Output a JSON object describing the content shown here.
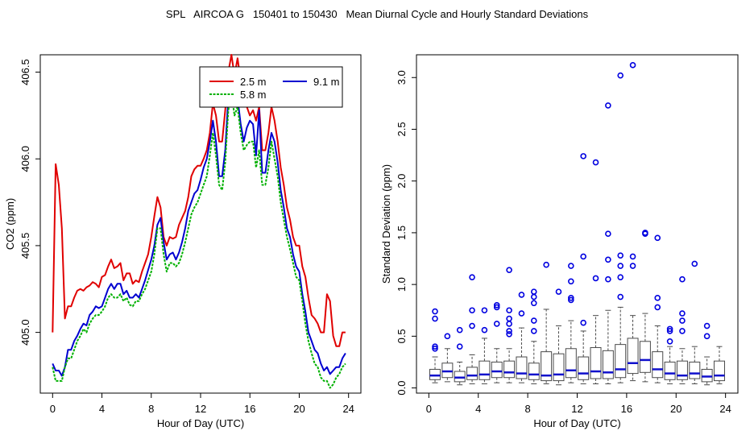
{
  "figure_title": "SPL   AIRCOA G   150401 to 150430   Mean Diurnal Cycle and Hourly Standard Deviations",
  "colors": {
    "red": "#e00000",
    "blue": "#0000d0",
    "green": "#00b000",
    "box": "#4a4a4a",
    "median": "#1010cc",
    "outlier": "#0000e0",
    "axis": "#000000"
  },
  "chart_data": [
    {
      "type": "line",
      "title": "",
      "xlabel": "Hour of Day (UTC)",
      "ylabel": "CO2 (ppm)",
      "xlim": [
        -1,
        25
      ],
      "ylim": [
        404.65,
        406.6
      ],
      "xticks": [
        0,
        4,
        8,
        12,
        16,
        20,
        24
      ],
      "xtick_labels": [
        "0",
        "4",
        "8",
        "12",
        "16",
        "20",
        "24"
      ],
      "yticks": [
        405.0,
        405.5,
        406.0,
        406.5
      ],
      "ytick_labels": [
        "405.0",
        "405.5",
        "406.0",
        "406.5"
      ],
      "x": [
        0,
        0.25,
        0.5,
        0.75,
        1,
        1.25,
        1.5,
        1.75,
        2,
        2.25,
        2.5,
        2.75,
        3,
        3.25,
        3.5,
        3.75,
        4,
        4.25,
        4.5,
        4.75,
        5,
        5.25,
        5.5,
        5.75,
        6,
        6.25,
        6.5,
        6.75,
        7,
        7.25,
        7.5,
        7.75,
        8,
        8.25,
        8.5,
        8.75,
        9,
        9.25,
        9.5,
        9.75,
        10,
        10.25,
        10.5,
        10.75,
        11,
        11.25,
        11.5,
        11.75,
        12,
        12.25,
        12.5,
        12.75,
        13,
        13.25,
        13.5,
        13.75,
        14,
        14.25,
        14.5,
        14.75,
        15,
        15.25,
        15.5,
        15.75,
        16,
        16.25,
        16.5,
        16.75,
        17,
        17.25,
        17.5,
        17.75,
        18,
        18.25,
        18.5,
        18.75,
        19,
        19.25,
        19.5,
        19.75,
        20,
        20.25,
        20.5,
        20.75,
        21,
        21.25,
        21.5,
        21.75,
        22,
        22.25,
        22.5,
        22.75,
        23,
        23.25,
        23.5,
        23.75
      ],
      "legend": {
        "position": "top-right",
        "entries": [
          "2.5 m",
          "9.1 m",
          "5.8 m"
        ]
      },
      "series": [
        {
          "name": "2.5 m",
          "color": "red",
          "values": [
            405.0,
            405.97,
            405.85,
            405.6,
            405.08,
            405.15,
            405.15,
            405.2,
            405.24,
            405.25,
            405.24,
            405.26,
            405.27,
            405.29,
            405.28,
            405.26,
            405.32,
            405.33,
            405.38,
            405.42,
            405.37,
            405.38,
            405.4,
            405.3,
            405.34,
            405.34,
            405.28,
            405.3,
            405.29,
            405.35,
            405.4,
            405.45,
            405.55,
            405.67,
            405.78,
            405.72,
            405.55,
            405.5,
            405.55,
            405.54,
            405.55,
            405.62,
            405.66,
            405.7,
            405.78,
            405.9,
            405.94,
            405.96,
            405.96,
            406.0,
            406.05,
            406.15,
            406.32,
            406.25,
            406.1,
            406.1,
            406.28,
            406.5,
            406.6,
            406.48,
            406.58,
            406.45,
            406.4,
            406.3,
            406.25,
            406.28,
            406.22,
            406.3,
            406.05,
            406.05,
            406.15,
            406.3,
            406.22,
            406.1,
            405.95,
            405.85,
            405.72,
            405.65,
            405.55,
            405.5,
            405.5,
            405.38,
            405.32,
            405.2,
            405.1,
            405.08,
            405.05,
            405.0,
            405.0,
            405.22,
            405.18,
            404.98,
            404.92,
            404.92,
            405.0,
            405.0
          ]
        },
        {
          "name": "9.1 m",
          "color": "blue",
          "values": [
            404.82,
            404.78,
            404.78,
            404.75,
            404.8,
            404.9,
            404.9,
            404.95,
            404.98,
            405.02,
            405.05,
            405.04,
            405.1,
            405.12,
            405.15,
            405.14,
            405.15,
            405.2,
            405.25,
            405.28,
            405.25,
            405.28,
            405.28,
            405.22,
            405.24,
            405.2,
            405.2,
            405.22,
            405.2,
            405.25,
            405.3,
            405.36,
            405.42,
            405.5,
            405.62,
            405.66,
            405.52,
            405.42,
            405.45,
            405.46,
            405.42,
            405.46,
            405.52,
            405.6,
            405.7,
            405.75,
            405.8,
            405.82,
            405.88,
            405.95,
            406.0,
            406.1,
            406.22,
            406.1,
            405.9,
            405.9,
            406.05,
            406.35,
            406.45,
            406.32,
            406.35,
            406.2,
            406.1,
            406.18,
            406.22,
            406.2,
            406.02,
            406.28,
            405.92,
            405.92,
            406.05,
            406.15,
            406.1,
            405.98,
            405.82,
            405.72,
            405.6,
            405.55,
            405.45,
            405.38,
            405.35,
            405.22,
            405.12,
            405.0,
            404.95,
            404.9,
            404.88,
            404.82,
            404.78,
            404.8,
            404.76,
            404.78,
            404.8,
            404.8,
            404.85,
            404.88
          ]
        },
        {
          "name": "5.8 m",
          "color": "green",
          "values": [
            404.8,
            404.72,
            404.72,
            404.72,
            404.8,
            404.85,
            404.85,
            404.9,
            404.95,
            404.98,
            405.02,
            405.0,
            405.05,
            405.08,
            405.1,
            405.1,
            405.12,
            405.15,
            405.2,
            405.22,
            405.2,
            405.2,
            405.22,
            405.18,
            405.2,
            405.16,
            405.15,
            405.18,
            405.18,
            405.22,
            405.25,
            405.3,
            405.35,
            405.45,
            405.6,
            405.6,
            405.45,
            405.35,
            405.4,
            405.4,
            405.38,
            405.4,
            405.45,
            405.52,
            405.6,
            405.68,
            405.72,
            405.75,
            405.8,
            405.85,
            405.9,
            406.02,
            406.15,
            406.02,
            405.85,
            405.82,
            405.98,
            406.28,
            406.38,
            406.25,
            406.3,
            406.15,
            406.05,
            406.08,
            406.1,
            406.1,
            405.95,
            406.05,
            405.85,
            405.85,
            405.95,
            406.1,
            406.0,
            405.9,
            405.75,
            405.65,
            405.55,
            405.48,
            405.4,
            405.32,
            405.3,
            405.18,
            405.05,
            404.95,
            404.88,
            404.82,
            404.8,
            404.74,
            404.72,
            404.72,
            404.68,
            404.7,
            404.74,
            404.76,
            404.8,
            404.82
          ]
        }
      ]
    },
    {
      "type": "box",
      "title": "",
      "xlabel": "Hour of Day (UTC)",
      "ylabel": "Standard Deviation (ppm)",
      "xlim": [
        -1,
        25
      ],
      "ylim": [
        -0.05,
        3.22
      ],
      "xticks": [
        0,
        4,
        8,
        12,
        16,
        20,
        24
      ],
      "xtick_labels": [
        "0",
        "4",
        "8",
        "12",
        "16",
        "20",
        "24"
      ],
      "yticks": [
        0.0,
        0.5,
        1.0,
        1.5,
        2.0,
        2.5,
        3.0
      ],
      "ytick_labels": [
        "0.0",
        "0.5",
        "1.0",
        "1.5",
        "2.0",
        "2.5",
        "3.0"
      ],
      "boxes": [
        {
          "hour": 0.5,
          "whisker_low": 0.05,
          "q1": 0.08,
          "median": 0.12,
          "q3": 0.18,
          "whisker_high": 0.3,
          "outliers": [
            0.38,
            0.4,
            0.67,
            0.74
          ]
        },
        {
          "hour": 1.5,
          "whisker_low": 0.06,
          "q1": 0.1,
          "median": 0.16,
          "q3": 0.24,
          "whisker_high": 0.38,
          "outliers": [
            0.5
          ]
        },
        {
          "hour": 2.5,
          "whisker_low": 0.03,
          "q1": 0.06,
          "median": 0.1,
          "q3": 0.16,
          "whisker_high": 0.25,
          "outliers": [
            0.4,
            0.56
          ]
        },
        {
          "hour": 3.5,
          "whisker_low": 0.04,
          "q1": 0.08,
          "median": 0.12,
          "q3": 0.2,
          "whisker_high": 0.32,
          "outliers": [
            0.6,
            0.75,
            1.07
          ]
        },
        {
          "hour": 4.5,
          "whisker_low": 0.04,
          "q1": 0.08,
          "median": 0.13,
          "q3": 0.26,
          "whisker_high": 0.48,
          "outliers": [
            0.56,
            0.75
          ]
        },
        {
          "hour": 5.5,
          "whisker_low": 0.05,
          "q1": 0.1,
          "median": 0.16,
          "q3": 0.25,
          "whisker_high": 0.38,
          "outliers": [
            0.62,
            0.78,
            0.8
          ]
        },
        {
          "hour": 6.5,
          "whisker_low": 0.05,
          "q1": 0.1,
          "median": 0.15,
          "q3": 0.26,
          "whisker_high": 0.38,
          "outliers": [
            0.52,
            0.55,
            0.62,
            0.67,
            0.75,
            1.14
          ]
        },
        {
          "hour": 7.5,
          "whisker_low": 0.05,
          "q1": 0.09,
          "median": 0.14,
          "q3": 0.3,
          "whisker_high": 0.58,
          "outliers": [
            0.72,
            0.9
          ]
        },
        {
          "hour": 8.5,
          "whisker_low": 0.04,
          "q1": 0.08,
          "median": 0.13,
          "q3": 0.24,
          "whisker_high": 0.45,
          "outliers": [
            0.55,
            0.65,
            0.82,
            0.88,
            0.93
          ]
        },
        {
          "hour": 9.5,
          "whisker_low": 0.04,
          "q1": 0.07,
          "median": 0.12,
          "q3": 0.35,
          "whisker_high": 0.76,
          "outliers": [
            1.19
          ]
        },
        {
          "hour": 10.5,
          "whisker_low": 0.03,
          "q1": 0.07,
          "median": 0.13,
          "q3": 0.33,
          "whisker_high": 0.6,
          "outliers": [
            0.93
          ]
        },
        {
          "hour": 11.5,
          "whisker_low": 0.05,
          "q1": 0.1,
          "median": 0.17,
          "q3": 0.38,
          "whisker_high": 0.65,
          "outliers": [
            0.85,
            0.87,
            1.03,
            1.18
          ]
        },
        {
          "hour": 12.5,
          "whisker_low": 0.04,
          "q1": 0.08,
          "median": 0.14,
          "q3": 0.3,
          "whisker_high": 0.55,
          "outliers": [
            0.63,
            1.27,
            2.24
          ]
        },
        {
          "hour": 13.5,
          "whisker_low": 0.04,
          "q1": 0.09,
          "median": 0.16,
          "q3": 0.39,
          "whisker_high": 0.7,
          "outliers": [
            1.06,
            2.18
          ]
        },
        {
          "hour": 14.5,
          "whisker_low": 0.04,
          "q1": 0.09,
          "median": 0.15,
          "q3": 0.36,
          "whisker_high": 0.75,
          "outliers": [
            1.05,
            1.24,
            1.49,
            2.73
          ]
        },
        {
          "hour": 15.5,
          "whisker_low": 0.05,
          "q1": 0.1,
          "median": 0.18,
          "q3": 0.42,
          "whisker_high": 0.78,
          "outliers": [
            0.88,
            1.07,
            1.18,
            1.28,
            3.02
          ]
        },
        {
          "hour": 16.5,
          "whisker_low": 0.07,
          "q1": 0.14,
          "median": 0.24,
          "q3": 0.48,
          "whisker_high": 0.7,
          "outliers": [
            1.18,
            1.27,
            3.12
          ]
        },
        {
          "hour": 17.5,
          "whisker_low": 0.06,
          "q1": 0.15,
          "median": 0.27,
          "q3": 0.45,
          "whisker_high": 0.72,
          "outliers": [
            1.49,
            1.5
          ]
        },
        {
          "hour": 18.5,
          "whisker_low": 0.05,
          "q1": 0.1,
          "median": 0.18,
          "q3": 0.35,
          "whisker_high": 0.6,
          "outliers": [
            0.78,
            0.87,
            1.45
          ]
        },
        {
          "hour": 19.5,
          "whisker_low": 0.04,
          "q1": 0.08,
          "median": 0.14,
          "q3": 0.25,
          "whisker_high": 0.4,
          "outliers": [
            0.45,
            0.55,
            0.57
          ]
        },
        {
          "hour": 20.5,
          "whisker_low": 0.04,
          "q1": 0.08,
          "median": 0.12,
          "q3": 0.26,
          "whisker_high": 0.38,
          "outliers": [
            0.55,
            0.65,
            0.72,
            1.05
          ]
        },
        {
          "hour": 21.5,
          "whisker_low": 0.04,
          "q1": 0.09,
          "median": 0.14,
          "q3": 0.25,
          "whisker_high": 0.4,
          "outliers": [
            1.2
          ]
        },
        {
          "hour": 22.5,
          "whisker_low": 0.03,
          "q1": 0.06,
          "median": 0.11,
          "q3": 0.18,
          "whisker_high": 0.3,
          "outliers": [
            0.5,
            0.6
          ]
        },
        {
          "hour": 23.5,
          "whisker_low": 0.04,
          "q1": 0.07,
          "median": 0.12,
          "q3": 0.26,
          "whisker_high": 0.4,
          "outliers": []
        }
      ]
    }
  ]
}
